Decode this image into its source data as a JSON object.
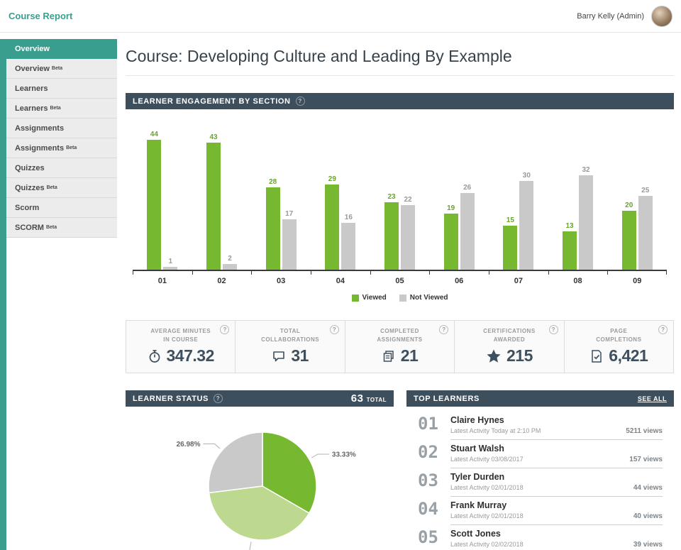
{
  "ui": {
    "help": "?"
  },
  "header": {
    "title": "Course Report",
    "user": "Barry Kelly (Admin)"
  },
  "sidebar": {
    "beta_label": "Beta",
    "items": [
      {
        "label": "Overview",
        "beta": false,
        "active": true
      },
      {
        "label": "Overview",
        "beta": true,
        "active": false
      },
      {
        "label": "Learners",
        "beta": false,
        "active": false
      },
      {
        "label": "Learners",
        "beta": true,
        "active": false
      },
      {
        "label": "Assignments",
        "beta": false,
        "active": false
      },
      {
        "label": "Assignments",
        "beta": true,
        "active": false
      },
      {
        "label": "Quizzes",
        "beta": false,
        "active": false
      },
      {
        "label": "Quizzes",
        "beta": true,
        "active": false
      },
      {
        "label": "Scorm",
        "beta": false,
        "active": false
      },
      {
        "label": "SCORM",
        "beta": true,
        "active": false
      }
    ]
  },
  "page": {
    "title": "Course: Developing Culture and Leading By Example"
  },
  "engagement": {
    "title": "LEARNER ENGAGEMENT BY SECTION"
  },
  "chart_data": [
    {
      "type": "bar",
      "title": "Learner Engagement by Section",
      "categories": [
        "01",
        "02",
        "03",
        "04",
        "05",
        "06",
        "07",
        "08",
        "09"
      ],
      "series": [
        {
          "name": "Viewed",
          "color": "#76b82f",
          "label_color": "#68a52c",
          "values": [
            44,
            43,
            28,
            29,
            23,
            19,
            15,
            13,
            20
          ]
        },
        {
          "name": "Not Viewed",
          "color": "#c9c9c9",
          "label_color": "#999999",
          "values": [
            1,
            2,
            17,
            16,
            22,
            26,
            30,
            32,
            25
          ]
        }
      ],
      "ylim": [
        0,
        46
      ],
      "grid": false,
      "legend_position": "bottom"
    },
    {
      "type": "pie",
      "title": "Learner Status",
      "slices": [
        {
          "label": "33.33%",
          "value": 33.33,
          "color": "#76b82f"
        },
        {
          "label": "",
          "value": 39.69,
          "color": "#bcd98f"
        },
        {
          "label": "26.98%",
          "value": 26.98,
          "color": "#c9c9c9"
        }
      ]
    }
  ],
  "stats": [
    {
      "label1": "AVERAGE MINUTES",
      "label2": "IN COURSE",
      "value": "347.32",
      "icon": "stopwatch-icon"
    },
    {
      "label1": "TOTAL",
      "label2": "COLLABORATIONS",
      "value": "31",
      "icon": "speech-bubble-icon"
    },
    {
      "label1": "COMPLETED",
      "label2": "ASSIGNMENTS",
      "value": "21",
      "icon": "assignments-icon"
    },
    {
      "label1": "CERTIFICATIONS",
      "label2": "AWARDED",
      "value": "215",
      "icon": "star-icon"
    },
    {
      "label1": "PAGE",
      "label2": "COMPLETIONS",
      "value": "6,421",
      "icon": "page-check-icon"
    }
  ],
  "learner_status": {
    "title": "LEARNER STATUS",
    "total_value": "63",
    "total_label": "TOTAL"
  },
  "top_learners": {
    "title": "TOP LEARNERS",
    "see_all": "SEE ALL",
    "rows": [
      {
        "rank": "01",
        "name": "Claire Hynes",
        "activity": "Latest Activity Today at 2:10 PM",
        "views": "5211 views"
      },
      {
        "rank": "02",
        "name": "Stuart Walsh",
        "activity": "Latest Activity 03/08/2017",
        "views": "157 views"
      },
      {
        "rank": "03",
        "name": "Tyler Durden",
        "activity": "Latest Activity 02/01/2018",
        "views": "44 views"
      },
      {
        "rank": "04",
        "name": "Frank Murray",
        "activity": "Latest Activity 02/01/2018",
        "views": "40 views"
      },
      {
        "rank": "05",
        "name": "Scott Jones",
        "activity": "Latest Activity 02/02/2018",
        "views": "39 views"
      }
    ]
  },
  "colors": {
    "accent_teal": "#3a9e8f",
    "panel_header": "#3d4f5d",
    "viewed_green": "#76b82f",
    "not_viewed_gray": "#c9c9c9",
    "pie_light_green": "#bcd98f",
    "stat_navy": "#3e4f5e"
  }
}
